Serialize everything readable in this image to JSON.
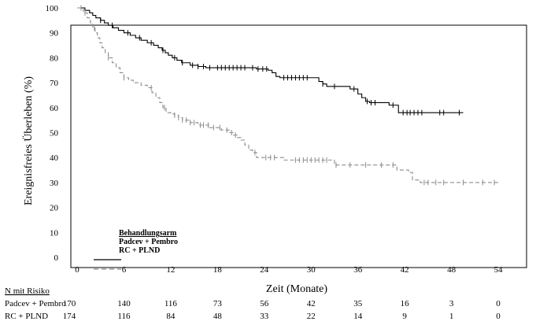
{
  "chart_data": {
    "type": "line",
    "title": "",
    "xlabel": "Zeit (Monate)",
    "ylabel": "Ereignisfreies  Überleben (%)",
    "xlim": [
      0,
      54
    ],
    "ylim": [
      0,
      100
    ],
    "x_ticks": [
      0,
      6,
      12,
      18,
      24,
      30,
      36,
      42,
      48,
      54
    ],
    "y_ticks": [
      0,
      10,
      20,
      30,
      40,
      50,
      60,
      70,
      80,
      90,
      100
    ],
    "grid": false,
    "legend": {
      "title": "Behandlungsarm",
      "placement": "bottom-left",
      "entries": [
        "Padcev + Pembro",
        "RC + PLND"
      ]
    },
    "series": [
      {
        "name": "Padcev + Pembro",
        "style": "solid",
        "color": "#000000",
        "points": [
          [
            0,
            100
          ],
          [
            1,
            99
          ],
          [
            1.6,
            98
          ],
          [
            2,
            97
          ],
          [
            2.4,
            96
          ],
          [
            3,
            95
          ],
          [
            3.5,
            94
          ],
          [
            4,
            93
          ],
          [
            4.6,
            92
          ],
          [
            5.3,
            91
          ],
          [
            6,
            90
          ],
          [
            6.8,
            89
          ],
          [
            7.5,
            88
          ],
          [
            8.2,
            87
          ],
          [
            9,
            86
          ],
          [
            9.8,
            85
          ],
          [
            10.4,
            84
          ],
          [
            10.9,
            83
          ],
          [
            11.3,
            82
          ],
          [
            11.7,
            81
          ],
          [
            12.2,
            80
          ],
          [
            12.8,
            79
          ],
          [
            13.4,
            78
          ],
          [
            14.5,
            77
          ],
          [
            15.5,
            76.5
          ],
          [
            16.5,
            76
          ],
          [
            22,
            76
          ],
          [
            23,
            75.5
          ],
          [
            24.5,
            75
          ],
          [
            25,
            74
          ],
          [
            25.5,
            72.5
          ],
          [
            26,
            72
          ],
          [
            30.5,
            72
          ],
          [
            31,
            70.5
          ],
          [
            31.5,
            69.5
          ],
          [
            32,
            68.5
          ],
          [
            34.5,
            68.5
          ],
          [
            35,
            67.5
          ],
          [
            36,
            65.5
          ],
          [
            36.5,
            64
          ],
          [
            37,
            62.5
          ],
          [
            37.5,
            62
          ],
          [
            39,
            62
          ],
          [
            40,
            61
          ],
          [
            40.8,
            61
          ],
          [
            41.2,
            58
          ],
          [
            44,
            58
          ],
          [
            49.5,
            58
          ]
        ],
        "censor_x": [
          3,
          4.5,
          6.5,
          8,
          9.5,
          11,
          12.5,
          13.5,
          14.8,
          15.5,
          16.2,
          17,
          18,
          18.5,
          19,
          19.5,
          20,
          20.5,
          21,
          21.5,
          22.5,
          23.2,
          23.8,
          24.3,
          26.5,
          27,
          27.5,
          28,
          28.5,
          29,
          29.5,
          31.5,
          33,
          35.5,
          37.2,
          37.7,
          38.2,
          40.5,
          41.8,
          42.3,
          42.7,
          43.2,
          43.7,
          44.2,
          46.5,
          47,
          49
        ]
      },
      {
        "name": "RC + PLND",
        "style": "dashed",
        "color": "#8c8c8c",
        "points": [
          [
            0,
            100
          ],
          [
            0.8,
            98
          ],
          [
            1.3,
            96
          ],
          [
            1.7,
            94
          ],
          [
            2,
            92
          ],
          [
            2.3,
            90
          ],
          [
            2.6,
            88
          ],
          [
            2.9,
            86
          ],
          [
            3.2,
            84
          ],
          [
            3.6,
            82
          ],
          [
            4,
            80
          ],
          [
            4.5,
            78
          ],
          [
            5,
            76
          ],
          [
            5.5,
            74
          ],
          [
            6,
            72
          ],
          [
            6.6,
            71
          ],
          [
            7.2,
            70
          ],
          [
            8.2,
            69
          ],
          [
            9,
            68
          ],
          [
            9.6,
            66
          ],
          [
            10.1,
            64
          ],
          [
            10.6,
            62
          ],
          [
            11,
            60
          ],
          [
            11.4,
            58
          ],
          [
            12,
            57.5
          ],
          [
            12.5,
            57
          ],
          [
            13,
            56
          ],
          [
            13.5,
            55
          ],
          [
            14.5,
            54
          ],
          [
            15.5,
            53
          ],
          [
            17,
            52
          ],
          [
            18.5,
            51
          ],
          [
            19.5,
            50
          ],
          [
            20,
            49
          ],
          [
            20.5,
            48
          ],
          [
            21,
            47
          ],
          [
            21.5,
            45
          ],
          [
            22,
            43
          ],
          [
            22.5,
            42
          ],
          [
            23,
            40
          ],
          [
            26,
            40
          ],
          [
            26.5,
            39
          ],
          [
            32.5,
            39
          ],
          [
            33,
            37
          ],
          [
            40.5,
            37
          ],
          [
            41,
            35
          ],
          [
            42.5,
            34
          ],
          [
            43,
            31
          ],
          [
            44,
            30
          ],
          [
            54,
            30
          ]
        ],
        "censor_x": [
          0.5,
          1,
          2.2,
          4,
          6,
          9.5,
          11.2,
          12.5,
          13,
          13.5,
          14,
          14.5,
          15,
          15.8,
          16.2,
          16.8,
          17.5,
          18.3,
          19.2,
          19.8,
          20.3,
          22.8,
          24.2,
          24.8,
          25.3,
          28,
          28.5,
          29,
          29.5,
          30,
          30.5,
          31,
          31.5,
          32,
          33.2,
          35,
          37,
          39,
          40.5,
          44.5,
          45,
          46,
          47,
          49.5,
          52,
          53.5
        ]
      }
    ],
    "risk_table": {
      "title": "N mit Risiko",
      "times": [
        0,
        6,
        12,
        18,
        24,
        30,
        36,
        42,
        48,
        54
      ],
      "rows": [
        {
          "label": "Padcev + Pembro",
          "values": [
            "170",
            "140",
            "116",
            "73",
            "56",
            "42",
            "35",
            "16",
            "3",
            "0"
          ]
        },
        {
          "label": "RC + PLND",
          "values": [
            "174",
            "116",
            "84",
            "48",
            "33",
            "22",
            "14",
            "9",
            "1",
            "0"
          ]
        }
      ]
    }
  }
}
